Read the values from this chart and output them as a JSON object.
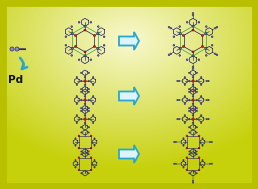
{
  "bg_gradient_light": "#f8f8cc",
  "bg_gradient_dark": "#d4d830",
  "bg_border": "#b8c000",
  "arrow_fill": "#ddf4fc",
  "arrow_edge": "#28a8d0",
  "mol_dark": "#2a2a6a",
  "mol_blue": "#4444aa",
  "mol_mid": "#6666aa",
  "mol_light": "#b0b0d8",
  "mol_red": "#cc2222",
  "mol_green": "#44aa44",
  "mol_green_dark": "#228822",
  "reagent_color": "#2a2a6a",
  "pd_color": "#111111",
  "pd_text": "Pd",
  "fig_w": 2.58,
  "fig_h": 1.89,
  "dpi": 100
}
